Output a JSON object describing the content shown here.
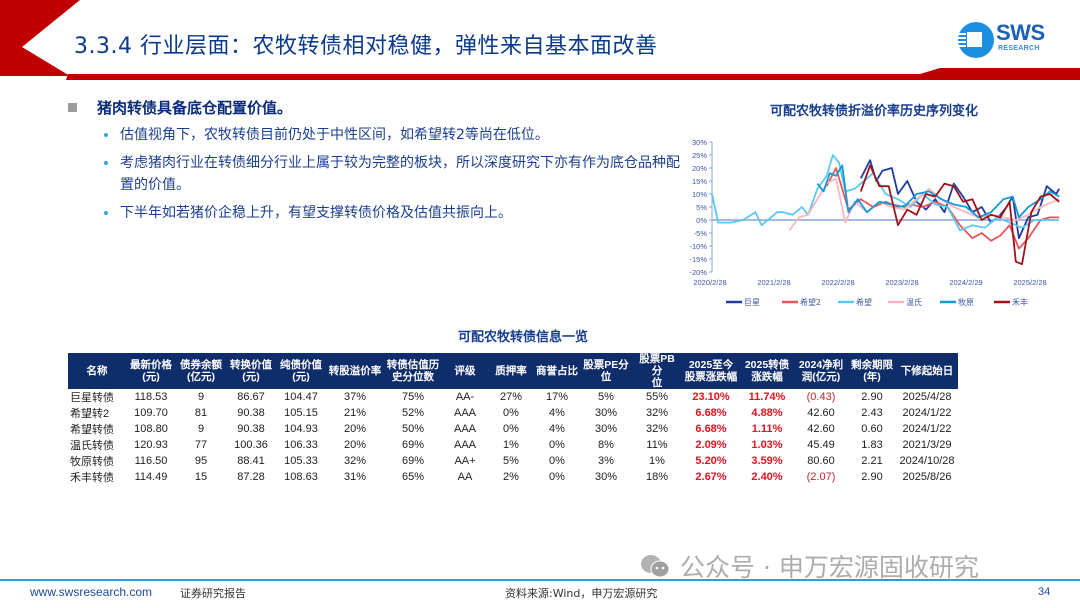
{
  "header": {
    "title": "3.3.4 行业层面：农牧转债相对稳健，弹性来自基本面改善",
    "logo_text": "SWS",
    "logo_sub": "RESEARCH",
    "accent_color": "#c00000",
    "title_color": "#0a3a8c"
  },
  "bullets": {
    "main": "猪肉转债具备底仓配置价值。",
    "items": [
      "估值视角下，农牧转债目前仍处于中性区间，如希望转2等尚在低位。",
      "考虑猪肉行业在转债细分行业上属于较为完整的板块，所以深度研究下亦有作为底仓品种配置的价值。",
      "下半年如若猪价企稳上升，有望支撑转债价格及估值共振向上。"
    ]
  },
  "chart_data": {
    "type": "line",
    "title": "可配农牧转债折溢价率历史序列变化",
    "xlabel": "",
    "ylabel": "",
    "ylim": [
      -0.2,
      0.3
    ],
    "y_ticks": [
      "30%",
      "25%",
      "20%",
      "15%",
      "10%",
      "5%",
      "0%",
      "-5%",
      "-10%",
      "-15%",
      "-20%"
    ],
    "x_ticks": [
      "2020/2/28",
      "2021/2/28",
      "2022/2/28",
      "2023/2/28",
      "2024/2/29",
      "2025/2/28"
    ],
    "legend_position": "bottom",
    "grid": false,
    "series": [
      {
        "name": "巨星",
        "color": "#1f3d9c",
        "x": [
          2022.4,
          2022.55,
          2022.65,
          2022.75,
          2022.9,
          2023.0,
          2023.15,
          2023.3,
          2023.45,
          2023.6,
          2023.75,
          2023.9,
          2024.05,
          2024.2,
          2024.35,
          2024.5,
          2024.65,
          2024.75,
          2024.85,
          2024.95,
          2025.1,
          2025.25,
          2025.4,
          2025.55,
          2025.6
        ],
        "values": [
          0.16,
          0.23,
          0.15,
          0.19,
          0.2,
          0.1,
          0.15,
          0.07,
          0.04,
          0.08,
          0.03,
          0.14,
          0.09,
          0.03,
          0.05,
          -0.01,
          0.02,
          0.05,
          0.09,
          -0.07,
          0.01,
          0.02,
          0.13,
          0.1,
          0.12
        ]
      },
      {
        "name": "希望2",
        "color": "#e8545a",
        "x": [
          2021.85,
          2022.0,
          2022.2,
          2022.4,
          2022.6,
          2022.8,
          2023.0,
          2023.2,
          2023.4,
          2023.6,
          2023.8,
          2024.0,
          2024.2,
          2024.35,
          2024.5,
          2024.65,
          2024.8,
          2024.95,
          2025.1,
          2025.3,
          2025.45,
          2025.6
        ],
        "values": [
          0.13,
          0.2,
          0.04,
          0.08,
          0.05,
          0.07,
          0.05,
          0.06,
          0.05,
          0.07,
          0.05,
          -0.02,
          -0.07,
          -0.05,
          -0.08,
          -0.06,
          -0.02,
          -0.11,
          -0.07,
          0.0,
          0.01,
          0.01
        ]
      },
      {
        "name": "希望",
        "color": "#5bc8f2",
        "x": [
          2020.0,
          2020.1,
          2020.3,
          2020.5,
          2020.7,
          2020.8,
          2020.9,
          2021.05,
          2021.15,
          2021.3,
          2021.45,
          2021.55,
          2021.7,
          2021.85,
          2021.95,
          2022.05,
          2022.15,
          2022.3,
          2022.45,
          2022.6,
          2022.8,
          2023.0,
          2023.2,
          2023.4,
          2023.6,
          2023.8,
          2024.0,
          2024.2,
          2024.4,
          2024.6,
          2024.8,
          2025.0,
          2025.2,
          2025.4,
          2025.6
        ],
        "values": [
          0.1,
          -0.01,
          -0.01,
          0.0,
          0.03,
          -0.02,
          0.0,
          0.03,
          0.03,
          0.02,
          0.05,
          0.02,
          0.12,
          0.17,
          0.25,
          0.22,
          0.11,
          0.12,
          0.15,
          0.18,
          0.1,
          0.08,
          0.05,
          0.1,
          0.06,
          0.05,
          -0.04,
          -0.02,
          -0.03,
          0.01,
          -0.01,
          -0.03,
          0.0,
          0.0,
          0.0
        ]
      },
      {
        "name": "温氏",
        "color": "#f4b8bf",
        "x": [
          2021.25,
          2021.4,
          2021.55,
          2021.7,
          2021.85,
          2022.0,
          2022.15,
          2022.3,
          2022.5,
          2022.7,
          2022.9,
          2023.1,
          2023.3,
          2023.5,
          2023.7,
          2023.9,
          2024.1,
          2024.3,
          2024.5,
          2024.7,
          2024.9,
          2025.1,
          2025.3,
          2025.5,
          2025.6
        ],
        "values": [
          -0.04,
          0.01,
          0.02,
          0.08,
          0.14,
          0.16,
          -0.01,
          0.07,
          0.03,
          0.07,
          0.05,
          0.04,
          0.08,
          0.12,
          0.08,
          0.05,
          0.03,
          0.01,
          0.02,
          0.01,
          0.0,
          0.02,
          0.05,
          0.07,
          0.08
        ]
      },
      {
        "name": "牧原",
        "color": "#139ad6",
        "x": [
          2021.7,
          2021.8,
          2021.9,
          2022.0,
          2022.1,
          2022.2,
          2022.35,
          2022.5,
          2022.7,
          2022.9,
          2023.1,
          2023.3,
          2023.5,
          2023.7,
          2023.9,
          2024.1,
          2024.3,
          2024.5,
          2024.7,
          2024.85,
          2024.95,
          2025.1,
          2025.3,
          2025.45,
          2025.6
        ],
        "values": [
          0.14,
          0.11,
          0.18,
          0.17,
          0.21,
          0.03,
          0.08,
          0.03,
          0.07,
          0.06,
          0.05,
          0.1,
          0.11,
          0.08,
          0.06,
          0.05,
          0.01,
          0.03,
          0.08,
          0.09,
          0.01,
          0.05,
          0.08,
          0.11,
          0.09
        ]
      },
      {
        "name": "禾丰",
        "color": "#a11218",
        "x": [
          2022.4,
          2022.55,
          2022.7,
          2022.85,
          2023.0,
          2023.15,
          2023.3,
          2023.45,
          2023.6,
          2023.75,
          2023.9,
          2024.05,
          2024.2,
          2024.35,
          2024.5,
          2024.65,
          2024.8,
          2024.9,
          2025.0,
          2025.15,
          2025.3,
          2025.45,
          2025.6
        ],
        "values": [
          0.11,
          0.21,
          0.13,
          0.13,
          -0.02,
          0.04,
          0.02,
          0.1,
          0.09,
          0.14,
          0.13,
          0.07,
          0.08,
          0.0,
          0.02,
          0.01,
          0.07,
          -0.16,
          -0.17,
          0.03,
          0.09,
          0.1,
          0.07
        ]
      }
    ]
  },
  "table": {
    "title": "可配农牧转债信息一览",
    "headers": [
      "名称",
      "最新价格(元)",
      "债券余额(亿元)",
      "转换价值(元)",
      "纯债价值(元)",
      "转股溢价率",
      "转债估值历史分位数",
      "评级",
      "质押率",
      "商誉占比",
      "股票PE分位",
      "股票PB分位",
      "2025至今股票涨跌幅",
      "2025转债涨跌幅",
      "2024净利润(亿元)",
      "剩余期限(年)",
      "下修起始日"
    ],
    "header_lines": [
      [
        "名称",
        ""
      ],
      [
        "最新价格",
        "(元)"
      ],
      [
        "债券余额",
        "(亿元)"
      ],
      [
        "转换价值",
        "(元)"
      ],
      [
        "纯债价值",
        "(元)"
      ],
      [
        "转股溢价率",
        ""
      ],
      [
        "转债估值历",
        "史分位数"
      ],
      [
        "评级",
        ""
      ],
      [
        "质押率",
        ""
      ],
      [
        "商誉占比",
        ""
      ],
      [
        "股票PE分位",
        ""
      ],
      [
        "股票PB分",
        "位"
      ],
      [
        "2025至今",
        "股票涨跌幅"
      ],
      [
        "2025转债",
        "涨跌幅"
      ],
      [
        "2024净利",
        "润(亿元)"
      ],
      [
        "剩余期限",
        "(年)"
      ],
      [
        "下修起始日",
        ""
      ]
    ],
    "rows": [
      [
        "巨星转债",
        "118.53",
        "9",
        "86.67",
        "104.47",
        "37%",
        "75%",
        "AA-",
        "27%",
        "17%",
        "5%",
        "55%",
        "23.10%",
        "11.74%",
        "(0.43)",
        "2.90",
        "2025/4/28"
      ],
      [
        "希望转2",
        "109.70",
        "81",
        "90.38",
        "105.15",
        "21%",
        "52%",
        "AAA",
        "0%",
        "4%",
        "30%",
        "32%",
        "6.68%",
        "4.88%",
        "42.60",
        "2.43",
        "2024/1/22"
      ],
      [
        "希望转债",
        "108.80",
        "9",
        "90.38",
        "104.93",
        "20%",
        "50%",
        "AAA",
        "0%",
        "4%",
        "30%",
        "32%",
        "6.68%",
        "1.11%",
        "42.60",
        "0.60",
        "2024/1/22"
      ],
      [
        "温氏转债",
        "120.93",
        "77",
        "100.36",
        "106.33",
        "20%",
        "69%",
        "AAA",
        "1%",
        "0%",
        "8%",
        "11%",
        "2.09%",
        "1.03%",
        "45.49",
        "1.83",
        "2021/3/29"
      ],
      [
        "牧原转债",
        "116.50",
        "95",
        "88.41",
        "105.33",
        "32%",
        "69%",
        "AA+",
        "5%",
        "0%",
        "3%",
        "1%",
        "5.20%",
        "3.59%",
        "80.60",
        "2.21",
        "2024/10/28"
      ],
      [
        "禾丰转债",
        "114.49",
        "15",
        "87.28",
        "108.63",
        "31%",
        "65%",
        "AA",
        "2%",
        "0%",
        "30%",
        "18%",
        "2.67%",
        "2.40%",
        "(2.07)",
        "2.90",
        "2025/8/26"
      ]
    ]
  },
  "footer": {
    "website": "www.swsresearch.com",
    "report_type": "证券研究报告",
    "source": "资料来源:Wind，申万宏源研究",
    "page": "34",
    "watermark": "公众号 · 申万宏源固收研究"
  }
}
